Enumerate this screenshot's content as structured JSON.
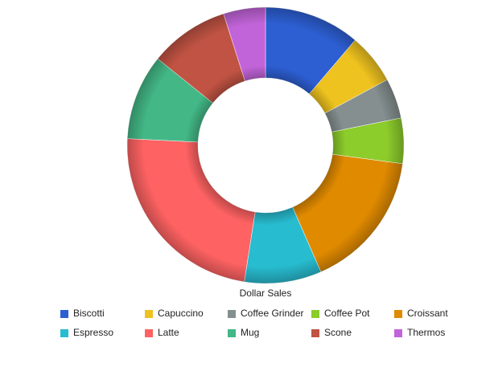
{
  "chart_data": {
    "type": "donut",
    "title": "Dollar Sales",
    "categories": [
      "Biscotti",
      "Capuccino",
      "Coffee Grinder",
      "Coffee Pot",
      "Croissant",
      "Espresso",
      "Latte",
      "Mug",
      "Scone",
      "Thermos"
    ],
    "values": [
      11.2,
      5.9,
      4.7,
      5.3,
      16.3,
      9,
      23.3,
      10,
      9.3,
      4.9
    ],
    "colors": [
      "#2d5fd3",
      "#eec21f",
      "#858f8f",
      "#8ccc2b",
      "#e08a00",
      "#28bcd0",
      "#fe6262",
      "#43b886",
      "#c05343",
      "#c264d9"
    ]
  }
}
